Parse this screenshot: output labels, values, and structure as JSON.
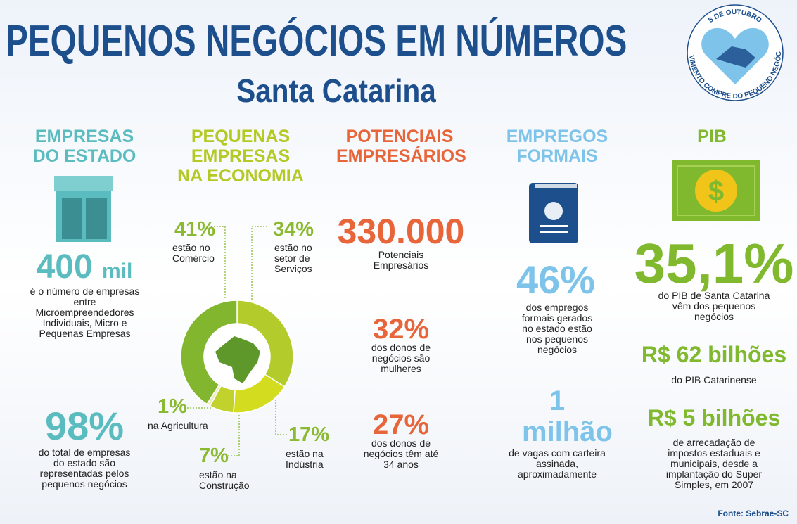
{
  "header": {
    "title": "PEQUENOS NEGÓCIOS EM NÚMEROS",
    "subtitle": "Santa Catarina"
  },
  "badge": {
    "top": "5 DE OUTUBRO",
    "bottom": "MOVIMENTO COMPRE DO PEQUENO NEGÓCIO"
  },
  "empresas": {
    "heading": "EMPRESAS DO ESTADO",
    "stat1": {
      "number": "400",
      "unit": "mil",
      "text": "é o número de empresas entre Microempreendedores Individuais, Micro e Pequenas Empresas"
    },
    "stat2": {
      "value": "98%",
      "text": "do total de empresas do estado são representadas pelos pequenos negócios"
    }
  },
  "economia": {
    "heading": "PEQUENAS EMPRESAS NA ECONOMIA",
    "segments": [
      {
        "value": 34,
        "label": "34%",
        "text": "estão no setor de Serviços",
        "color": "#b3cb2b"
      },
      {
        "value": 17,
        "label": "17%",
        "text": "estão na Indústria",
        "color": "#d3dc1e"
      },
      {
        "value": 7,
        "label": "7%",
        "text": "estão na Construção",
        "color": "#c2d22c"
      },
      {
        "value": 1,
        "label": "1%",
        "text": "na Agricultura",
        "color": "#ecedb8"
      },
      {
        "value": 41,
        "label": "41%",
        "text": "estão no Comércio",
        "color": "#82b62f"
      }
    ]
  },
  "potenciais": {
    "heading": "POTENCIAIS EMPRESÁRIOS",
    "stats": [
      {
        "value": "330.000",
        "text": "Potenciais Empresários"
      },
      {
        "value": "32%",
        "text": "dos donos de negócios são mulheres"
      },
      {
        "value": "27%",
        "text": "dos donos de negócios têm até 34 anos"
      }
    ]
  },
  "empregos": {
    "heading": "EMPREGOS FORMAIS",
    "stats": [
      {
        "value": "46%",
        "text": "dos empregos formais gerados no estado estão nos pequenos negócios"
      },
      {
        "value": "1 milhão",
        "text": "de vagas com carteira assinada, aproximadamente"
      }
    ]
  },
  "pib": {
    "heading": "PIB",
    "stats": [
      {
        "value": "35,1%",
        "text": "do PIB de Santa Catarina vêm dos pequenos negócios"
      },
      {
        "value": "R$ 62 bilhões",
        "text": "do PIB Catarinense"
      },
      {
        "value": "R$ 5 bilhões",
        "text": "de arrecadação de impostos estaduais e municipais, desde a implantação do Super Simples, em 2007"
      }
    ]
  },
  "source": "Fonte: Sebrae-SC"
}
